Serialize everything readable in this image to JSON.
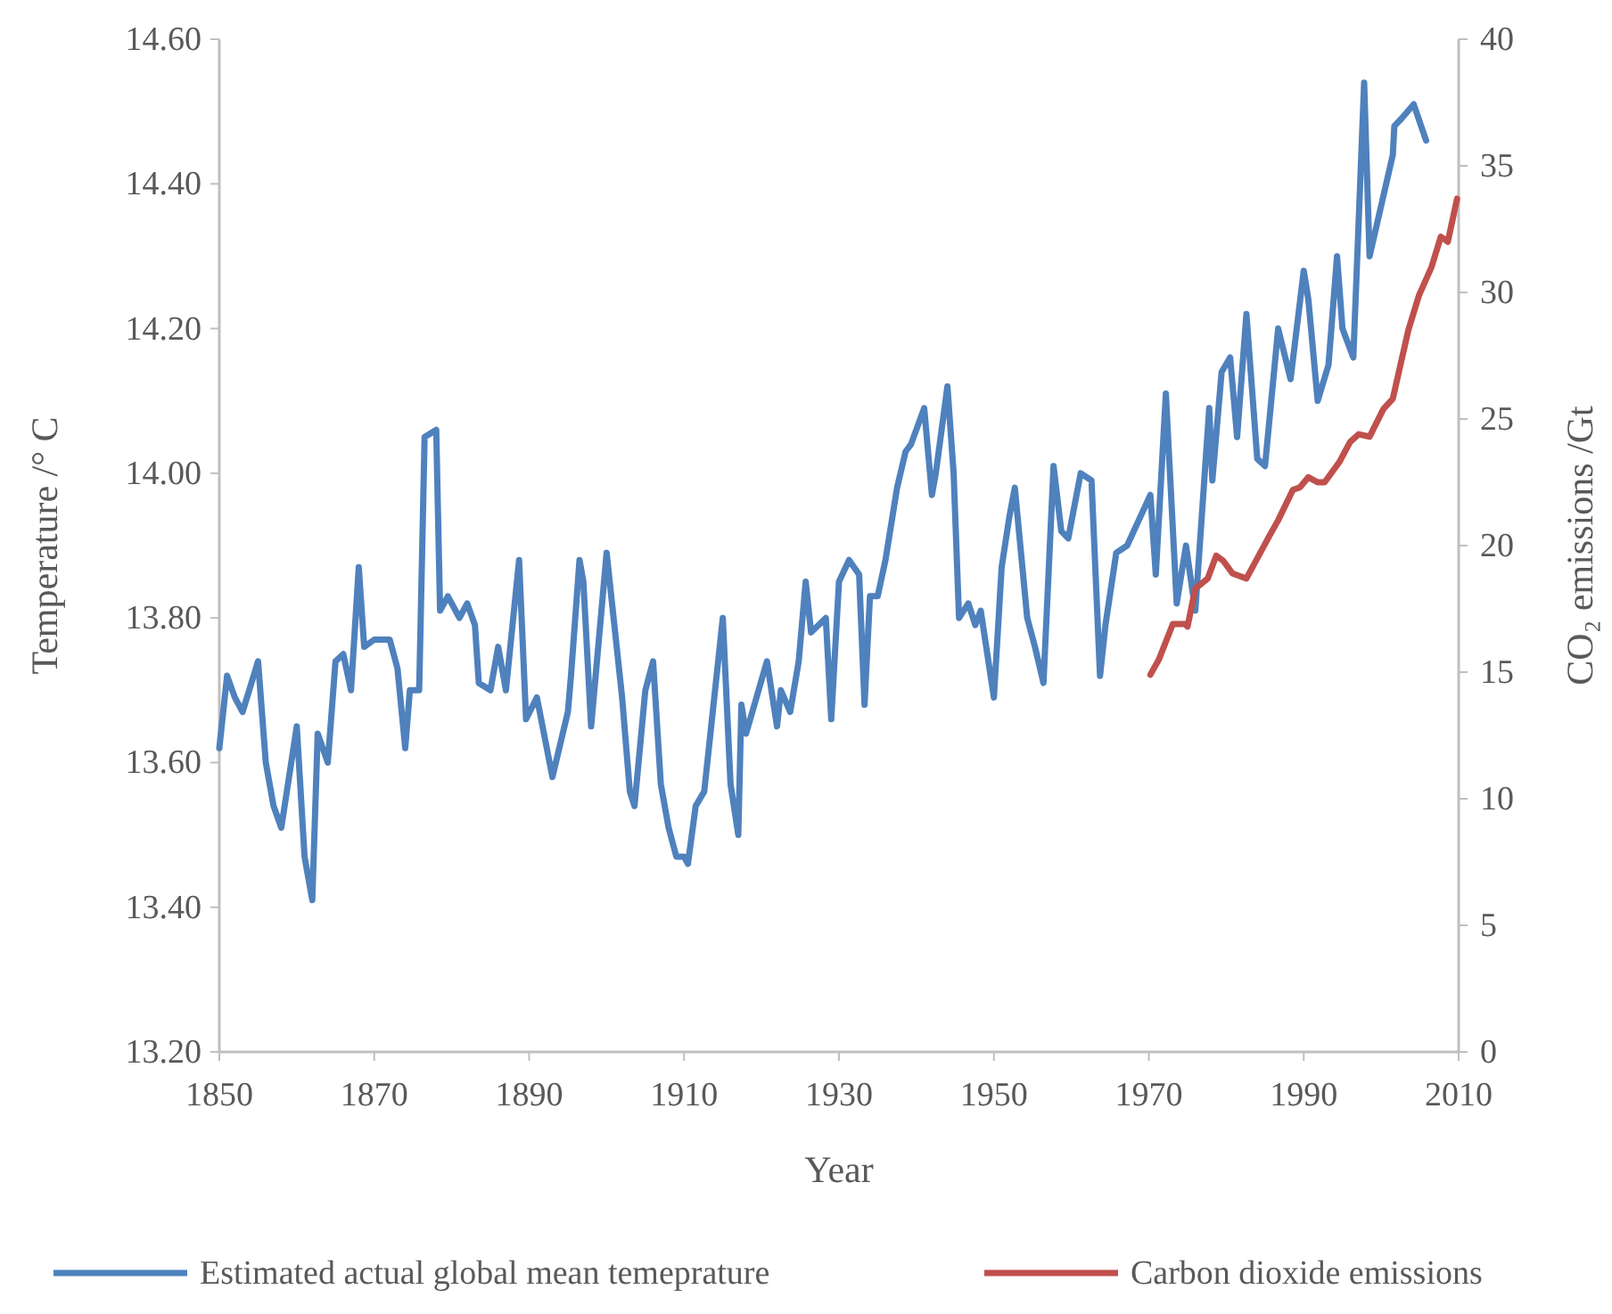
{
  "chart_data": {
    "type": "line",
    "xlabel": "Year",
    "ylabel": "Temperature /° C",
    "y2label": "CO₂ emissions /Gt",
    "xlim": [
      1850,
      2010
    ],
    "xticks": [
      1850,
      1870,
      1890,
      1910,
      1930,
      1950,
      1970,
      1990,
      2010
    ],
    "ylim": [
      13.2,
      14.6
    ],
    "yticks": [
      {
        "value": 13.2,
        "label": "13.20"
      },
      {
        "value": 13.4,
        "label": "13.40"
      },
      {
        "value": 13.6,
        "label": "13.60"
      },
      {
        "value": 13.8,
        "label": "13.80"
      },
      {
        "value": 14.0,
        "label": "14.00"
      },
      {
        "value": 14.2,
        "label": "14.20"
      },
      {
        "value": 14.4,
        "label": "14.40"
      },
      {
        "value": 14.6,
        "label": "14.60"
      }
    ],
    "y2lim": [
      0,
      40
    ],
    "y2ticks": [
      0,
      5,
      10,
      15,
      20,
      25,
      30,
      35,
      40
    ],
    "grid": false,
    "legend": "bottom",
    "marker": "none",
    "line_style": "solid",
    "series": [
      {
        "name": "Estimated actual global mean temeprature",
        "color": "#4f81bd",
        "x": [
          1850,
          1851,
          1852,
          1853,
          1855,
          1856,
          1857,
          1858,
          1860,
          1861,
          1862,
          1862.7,
          1864,
          1865,
          1866,
          1867,
          1868,
          1868.7,
          1870,
          1872,
          1873,
          1874,
          1874.6,
          1875.8,
          1876.5,
          1878,
          1878.5,
          1879.5,
          1881,
          1882,
          1883,
          1883.5,
          1885,
          1886,
          1887,
          1888.7,
          1889.6,
          1891,
          1893,
          1895,
          1895.4,
          1896.5,
          1897,
          1898,
          1900,
          1902,
          1903,
          1903.6,
          1905,
          1906,
          1907,
          1908,
          1909,
          1910,
          1910.5,
          1911.5,
          1912.6,
          1915,
          1916,
          1917,
          1917.4,
          1918,
          1920.7,
          1922,
          1922.5,
          1923.7,
          1924.8,
          1925.7,
          1926.4,
          1928.3,
          1929,
          1930,
          1931.3,
          1932.6,
          1933.3,
          1934,
          1935,
          1936,
          1937.5,
          1938.6,
          1939.3,
          1941,
          1942,
          1942.5,
          1944,
          1944.8,
          1945.5,
          1946.7,
          1947.6,
          1948.3,
          1950,
          1951,
          1952,
          1952.7,
          1954.3,
          1955.3,
          1956.4,
          1957.7,
          1958.7,
          1959.6,
          1961.2,
          1962.6,
          1963.7,
          1964.4,
          1965.8,
          1967.2,
          1970.2,
          1970.9,
          1972.2,
          1973.6,
          1974.8,
          1976,
          1977.8,
          1978.2,
          1979.4,
          1980.5,
          1981.4,
          1982.6,
          1984,
          1985,
          1986.7,
          1988.3,
          1990,
          1990.6,
          1991.8,
          1993.2,
          1994.3,
          1995,
          1996.4,
          1997.8,
          1998.5,
          2001.5,
          2001.7,
          2002.6,
          2004.2,
          2005.8
        ],
        "values": [
          13.62,
          13.72,
          13.69,
          13.67,
          13.74,
          13.6,
          13.54,
          13.51,
          13.65,
          13.47,
          13.41,
          13.64,
          13.6,
          13.74,
          13.75,
          13.7,
          13.87,
          13.76,
          13.77,
          13.77,
          13.73,
          13.62,
          13.7,
          13.7,
          14.05,
          14.06,
          13.81,
          13.83,
          13.8,
          13.82,
          13.79,
          13.71,
          13.7,
          13.76,
          13.7,
          13.88,
          13.66,
          13.69,
          13.58,
          13.67,
          13.72,
          13.88,
          13.85,
          13.65,
          13.89,
          13.69,
          13.56,
          13.54,
          13.7,
          13.74,
          13.57,
          13.51,
          13.47,
          13.47,
          13.46,
          13.54,
          13.56,
          13.8,
          13.57,
          13.5,
          13.68,
          13.64,
          13.74,
          13.65,
          13.7,
          13.67,
          13.74,
          13.85,
          13.78,
          13.8,
          13.66,
          13.85,
          13.88,
          13.86,
          13.68,
          13.83,
          13.83,
          13.88,
          13.98,
          14.03,
          14.04,
          14.09,
          13.97,
          14.0,
          14.12,
          14.0,
          13.8,
          13.82,
          13.79,
          13.81,
          13.69,
          13.87,
          13.94,
          13.98,
          13.8,
          13.76,
          13.71,
          14.01,
          13.92,
          13.91,
          14.0,
          13.99,
          13.72,
          13.79,
          13.89,
          13.9,
          13.97,
          13.86,
          14.11,
          13.82,
          13.9,
          13.81,
          14.09,
          13.99,
          14.14,
          14.16,
          14.05,
          14.22,
          14.02,
          14.01,
          14.2,
          14.13,
          14.28,
          14.24,
          14.1,
          14.15,
          14.3,
          14.2,
          14.16,
          14.54,
          14.3,
          14.44,
          14.48,
          14.49,
          14.51,
          14.46
        ]
      },
      {
        "name": "Carbon dioxide emissions",
        "color": "#c0504d",
        "axis": "y2",
        "x": [
          1970.2,
          1971.3,
          1973.1,
          1974.7,
          1975,
          1976,
          1977.6,
          1978.7,
          1979.6,
          1980.8,
          1982.6,
          1985.6,
          1986.7,
          1988.6,
          1989.5,
          1990.6,
          1991.8,
          1992.7,
          1994.6,
          1996,
          1997.1,
          1998.5,
          2000.3,
          2001.5,
          2003.5,
          2004.9,
          2006.5,
          2007.7,
          2008.6,
          2009.8
        ],
        "values": [
          14.9,
          15.5,
          16.9,
          16.9,
          16.8,
          18.3,
          18.7,
          19.6,
          19.4,
          18.9,
          18.7,
          20.4,
          21.0,
          22.2,
          22.3,
          22.7,
          22.5,
          22.5,
          23.3,
          24.1,
          24.4,
          24.3,
          25.4,
          25.8,
          28.5,
          29.9,
          31.0,
          32.2,
          32.0,
          33.7
        ]
      }
    ]
  }
}
